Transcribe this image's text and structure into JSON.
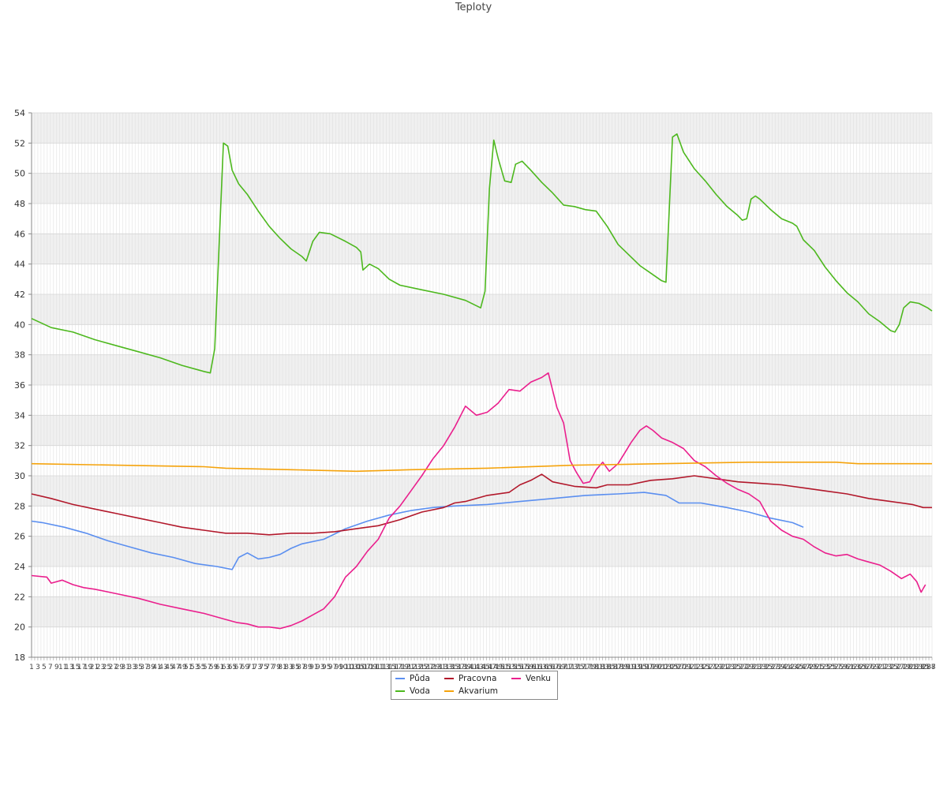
{
  "chart_data": {
    "type": "line",
    "title": "Teploty",
    "xlabel": "",
    "ylabel": "",
    "ylim": [
      18,
      54
    ],
    "yticks": [
      18,
      20,
      22,
      24,
      26,
      28,
      30,
      32,
      34,
      36,
      38,
      40,
      42,
      44,
      46,
      48,
      50,
      52,
      54
    ],
    "x_count": 288,
    "x_labels_note": "dense overlapping sample indices 1..288",
    "x_tick_first": "1",
    "x_tick_last": "288",
    "grid": true,
    "legend_position": "bottom",
    "series": [
      {
        "name": "Půda",
        "color": "#5b8ff0",
        "points": [
          [
            1,
            27.0
          ],
          [
            6,
            26.9
          ],
          [
            16,
            26.6
          ],
          [
            26,
            26.2
          ],
          [
            36,
            25.7
          ],
          [
            46,
            25.3
          ],
          [
            56,
            24.9
          ],
          [
            66,
            24.6
          ],
          [
            76,
            24.2
          ],
          [
            86,
            24.0
          ],
          [
            93,
            23.8
          ],
          [
            96,
            24.6
          ],
          [
            100,
            24.9
          ],
          [
            105,
            24.5
          ],
          [
            110,
            24.6
          ],
          [
            115,
            24.8
          ],
          [
            120,
            25.2
          ],
          [
            125,
            25.5
          ],
          [
            135,
            25.8
          ],
          [
            145,
            26.5
          ],
          [
            155,
            27.0
          ],
          [
            165,
            27.4
          ],
          [
            175,
            27.7
          ],
          [
            185,
            27.9
          ],
          [
            195,
            28.0
          ],
          [
            210,
            28.1
          ],
          [
            225,
            28.3
          ],
          [
            240,
            28.5
          ],
          [
            255,
            28.7
          ],
          [
            270,
            28.8
          ],
          [
            282,
            28.9
          ],
          [
            292,
            28.7
          ],
          [
            298,
            28.2
          ],
          [
            308,
            28.2
          ],
          [
            320,
            27.9
          ],
          [
            330,
            27.6
          ],
          [
            340,
            27.2
          ],
          [
            350,
            26.9
          ],
          [
            355,
            26.6
          ]
        ]
      },
      {
        "name": "Voda",
        "color": "#4db81e",
        "points": [
          [
            1,
            40.4
          ],
          [
            10,
            39.8
          ],
          [
            20,
            39.5
          ],
          [
            30,
            39.0
          ],
          [
            40,
            38.6
          ],
          [
            50,
            38.2
          ],
          [
            60,
            37.8
          ],
          [
            70,
            37.3
          ],
          [
            80,
            36.9
          ],
          [
            83,
            36.8
          ],
          [
            85,
            38.4
          ],
          [
            89,
            52.0
          ],
          [
            91,
            51.8
          ],
          [
            93,
            50.2
          ],
          [
            96,
            49.3
          ],
          [
            100,
            48.6
          ],
          [
            105,
            47.5
          ],
          [
            110,
            46.5
          ],
          [
            115,
            45.7
          ],
          [
            120,
            45.0
          ],
          [
            125,
            44.5
          ],
          [
            127,
            44.2
          ],
          [
            130,
            45.5
          ],
          [
            133,
            46.1
          ],
          [
            138,
            46.0
          ],
          [
            145,
            45.5
          ],
          [
            150,
            45.1
          ],
          [
            152,
            44.8
          ],
          [
            153,
            43.6
          ],
          [
            156,
            44.0
          ],
          [
            160,
            43.7
          ],
          [
            165,
            43.0
          ],
          [
            170,
            42.6
          ],
          [
            180,
            42.3
          ],
          [
            190,
            42.0
          ],
          [
            200,
            41.6
          ],
          [
            207,
            41.1
          ],
          [
            209,
            42.2
          ],
          [
            211,
            49.0
          ],
          [
            213,
            52.2
          ],
          [
            215,
            51.0
          ],
          [
            218,
            49.5
          ],
          [
            221,
            49.4
          ],
          [
            223,
            50.6
          ],
          [
            226,
            50.8
          ],
          [
            230,
            50.2
          ],
          [
            235,
            49.4
          ],
          [
            240,
            48.7
          ],
          [
            245,
            47.9
          ],
          [
            250,
            47.8
          ],
          [
            255,
            47.6
          ],
          [
            260,
            47.5
          ],
          [
            265,
            46.5
          ],
          [
            270,
            45.3
          ],
          [
            275,
            44.6
          ],
          [
            280,
            43.9
          ],
          [
            285,
            43.4
          ],
          [
            290,
            42.9
          ],
          [
            292,
            42.8
          ],
          [
            295,
            52.4
          ],
          [
            297,
            52.6
          ],
          [
            300,
            51.4
          ],
          [
            305,
            50.3
          ],
          [
            310,
            49.5
          ],
          [
            315,
            48.6
          ],
          [
            320,
            47.8
          ],
          [
            325,
            47.2
          ],
          [
            327,
            46.9
          ],
          [
            329,
            47.0
          ],
          [
            331,
            48.3
          ],
          [
            333,
            48.5
          ],
          [
            335,
            48.3
          ],
          [
            340,
            47.6
          ],
          [
            345,
            47.0
          ],
          [
            350,
            46.7
          ],
          [
            352,
            46.5
          ],
          [
            355,
            45.6
          ],
          [
            360,
            44.9
          ],
          [
            365,
            43.8
          ],
          [
            370,
            42.9
          ],
          [
            375,
            42.1
          ],
          [
            380,
            41.5
          ],
          [
            385,
            40.7
          ],
          [
            390,
            40.2
          ],
          [
            395,
            39.6
          ],
          [
            397,
            39.5
          ],
          [
            399,
            40.0
          ],
          [
            401,
            41.1
          ],
          [
            404,
            41.5
          ],
          [
            408,
            41.4
          ],
          [
            412,
            41.1
          ],
          [
            414,
            40.9
          ]
        ]
      },
      {
        "name": "Pracovna",
        "color": "#b2182b",
        "points": [
          [
            1,
            28.8
          ],
          [
            10,
            28.5
          ],
          [
            20,
            28.1
          ],
          [
            30,
            27.8
          ],
          [
            40,
            27.5
          ],
          [
            50,
            27.2
          ],
          [
            60,
            26.9
          ],
          [
            70,
            26.6
          ],
          [
            80,
            26.4
          ],
          [
            90,
            26.2
          ],
          [
            100,
            26.2
          ],
          [
            110,
            26.1
          ],
          [
            120,
            26.2
          ],
          [
            130,
            26.2
          ],
          [
            140,
            26.3
          ],
          [
            150,
            26.5
          ],
          [
            160,
            26.7
          ],
          [
            170,
            27.1
          ],
          [
            180,
            27.6
          ],
          [
            190,
            27.9
          ],
          [
            195,
            28.2
          ],
          [
            200,
            28.3
          ],
          [
            210,
            28.7
          ],
          [
            220,
            28.9
          ],
          [
            225,
            29.4
          ],
          [
            230,
            29.7
          ],
          [
            235,
            30.1
          ],
          [
            240,
            29.6
          ],
          [
            250,
            29.3
          ],
          [
            260,
            29.2
          ],
          [
            265,
            29.4
          ],
          [
            275,
            29.4
          ],
          [
            285,
            29.7
          ],
          [
            295,
            29.8
          ],
          [
            305,
            30.0
          ],
          [
            315,
            29.8
          ],
          [
            325,
            29.6
          ],
          [
            335,
            29.5
          ],
          [
            345,
            29.4
          ],
          [
            355,
            29.2
          ],
          [
            365,
            29.0
          ],
          [
            375,
            28.8
          ],
          [
            385,
            28.5
          ],
          [
            395,
            28.3
          ],
          [
            405,
            28.1
          ],
          [
            410,
            27.9
          ],
          [
            414,
            27.9
          ]
        ]
      },
      {
        "name": "Venku",
        "color": "#ea1f8d",
        "points": [
          [
            1,
            23.4
          ],
          [
            8,
            23.3
          ],
          [
            10,
            22.9
          ],
          [
            15,
            23.1
          ],
          [
            20,
            22.8
          ],
          [
            25,
            22.6
          ],
          [
            30,
            22.5
          ],
          [
            40,
            22.2
          ],
          [
            50,
            21.9
          ],
          [
            60,
            21.5
          ],
          [
            70,
            21.2
          ],
          [
            80,
            20.9
          ],
          [
            90,
            20.5
          ],
          [
            95,
            20.3
          ],
          [
            100,
            20.2
          ],
          [
            105,
            20.0
          ],
          [
            110,
            20.0
          ],
          [
            115,
            19.9
          ],
          [
            120,
            20.1
          ],
          [
            125,
            20.4
          ],
          [
            130,
            20.8
          ],
          [
            135,
            21.2
          ],
          [
            140,
            22.0
          ],
          [
            145,
            23.3
          ],
          [
            150,
            24.0
          ],
          [
            155,
            25.0
          ],
          [
            160,
            25.8
          ],
          [
            165,
            27.2
          ],
          [
            170,
            28.0
          ],
          [
            175,
            29.0
          ],
          [
            180,
            30.0
          ],
          [
            185,
            31.1
          ],
          [
            190,
            32.0
          ],
          [
            195,
            33.2
          ],
          [
            200,
            34.6
          ],
          [
            205,
            34.0
          ],
          [
            210,
            34.2
          ],
          [
            215,
            34.8
          ],
          [
            220,
            35.7
          ],
          [
            225,
            35.6
          ],
          [
            230,
            36.2
          ],
          [
            235,
            36.5
          ],
          [
            238,
            36.8
          ],
          [
            242,
            34.5
          ],
          [
            245,
            33.5
          ],
          [
            248,
            31.0
          ],
          [
            251,
            30.2
          ],
          [
            254,
            29.5
          ],
          [
            257,
            29.6
          ],
          [
            260,
            30.4
          ],
          [
            263,
            30.9
          ],
          [
            266,
            30.3
          ],
          [
            270,
            30.8
          ],
          [
            273,
            31.5
          ],
          [
            276,
            32.2
          ],
          [
            280,
            33.0
          ],
          [
            283,
            33.3
          ],
          [
            286,
            33.0
          ],
          [
            290,
            32.5
          ],
          [
            295,
            32.2
          ],
          [
            300,
            31.8
          ],
          [
            305,
            31.0
          ],
          [
            310,
            30.6
          ],
          [
            315,
            30.0
          ],
          [
            320,
            29.5
          ],
          [
            325,
            29.1
          ],
          [
            330,
            28.8
          ],
          [
            335,
            28.3
          ],
          [
            340,
            27.0
          ],
          [
            345,
            26.4
          ],
          [
            350,
            26.0
          ],
          [
            355,
            25.8
          ],
          [
            360,
            25.3
          ],
          [
            365,
            24.9
          ],
          [
            370,
            24.7
          ],
          [
            375,
            24.8
          ],
          [
            380,
            24.5
          ],
          [
            385,
            24.3
          ],
          [
            390,
            24.1
          ],
          [
            395,
            23.7
          ],
          [
            400,
            23.2
          ],
          [
            404,
            23.5
          ],
          [
            407,
            23.0
          ],
          [
            409,
            22.3
          ],
          [
            411,
            22.8
          ]
        ]
      },
      {
        "name": "Akvarium",
        "color": "#f5a30c",
        "points": [
          [
            1,
            30.8
          ],
          [
            40,
            30.7
          ],
          [
            80,
            30.6
          ],
          [
            90,
            30.5
          ],
          [
            120,
            30.4
          ],
          [
            150,
            30.3
          ],
          [
            175,
            30.4
          ],
          [
            210,
            30.5
          ],
          [
            250,
            30.7
          ],
          [
            290,
            30.8
          ],
          [
            330,
            30.9
          ],
          [
            370,
            30.9
          ],
          [
            380,
            30.8
          ],
          [
            400,
            30.8
          ],
          [
            414,
            30.8
          ]
        ]
      }
    ]
  }
}
